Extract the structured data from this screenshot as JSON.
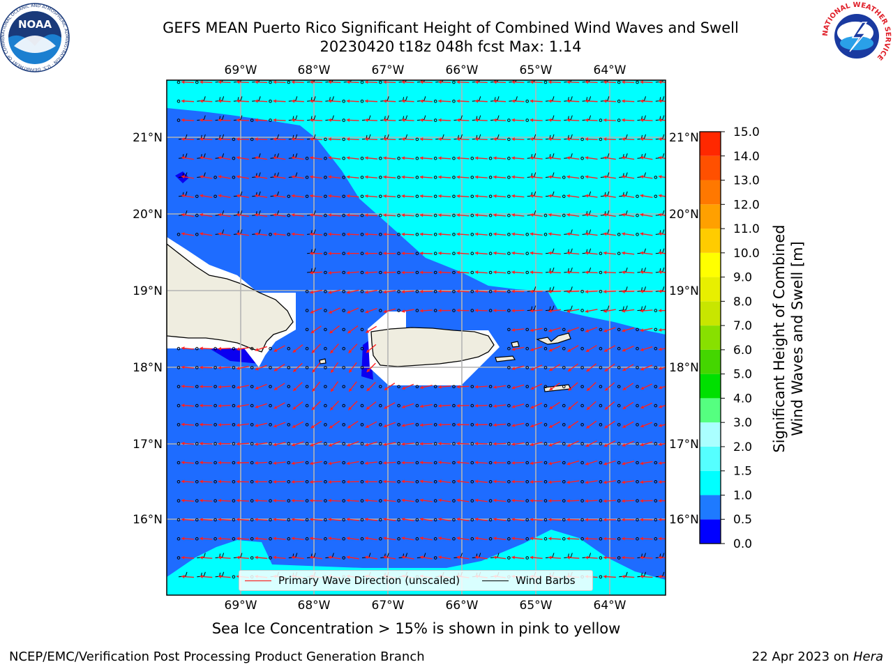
{
  "header": {
    "title_line1": "GEFS MEAN Puerto Rico Significant Height of Combined Wind Waves and Swell",
    "title_line2": "20230420 t18z 048h fcst   Max: 1.14"
  },
  "logos": {
    "noaa_text": "NOAA",
    "noaa_ring": "NATIONAL OCEANIC AND ATMOSPHERIC ADMINISTRATION · U.S. DEPARTMENT OF COMMERCE ·",
    "nws_ring": "NATIONAL WEATHER SERVICE"
  },
  "map": {
    "lon_labels": [
      "69°W",
      "68°W",
      "67°W",
      "66°W",
      "65°W",
      "64°W"
    ],
    "lat_labels": [
      "21°N",
      "20°N",
      "19°N",
      "18°N",
      "17°N",
      "16°N"
    ],
    "colors": {
      "deep_blue": "#0a00f0",
      "blue": "#1e6cff",
      "cyan": "#00ffff",
      "land": "#efede0",
      "arrow": "#ff2020",
      "barb": "#000000"
    }
  },
  "legend": {
    "wave_label": "Primary Wave Direction (unscaled)",
    "barb_label": "Wind Barbs",
    "wave_color": "#ff0000",
    "barb_color": "#000000"
  },
  "colorbar": {
    "title_line1": "Significant Height of Combined",
    "title_line2": "Wind Waves and Swell [m]",
    "ticks": [
      "0.0",
      "0.5",
      "1.0",
      "1.5",
      "2.0",
      "3.0",
      "4.0",
      "5.0",
      "6.0",
      "7.0",
      "8.0",
      "9.0",
      "10.0",
      "11.0",
      "12.0",
      "13.0",
      "14.0",
      "15.0"
    ],
    "colors": [
      "#0000ff",
      "#1e7aff",
      "#00ffff",
      "#55ffff",
      "#aaffff",
      "#55ff80",
      "#00e000",
      "#44d600",
      "#88e000",
      "#c8e600",
      "#e8ef00",
      "#ffff00",
      "#ffcc00",
      "#ffa000",
      "#ff7800",
      "#ff5000",
      "#ff2800"
    ]
  },
  "notes": {
    "ice": "Sea Ice Concentration > 15% is shown in pink to yellow"
  },
  "footer": {
    "left": "NCEP/EMC/Verification Post Processing Product Generation Branch",
    "right_prefix": "22 Apr 2023 on ",
    "right_machine": "Hera"
  }
}
